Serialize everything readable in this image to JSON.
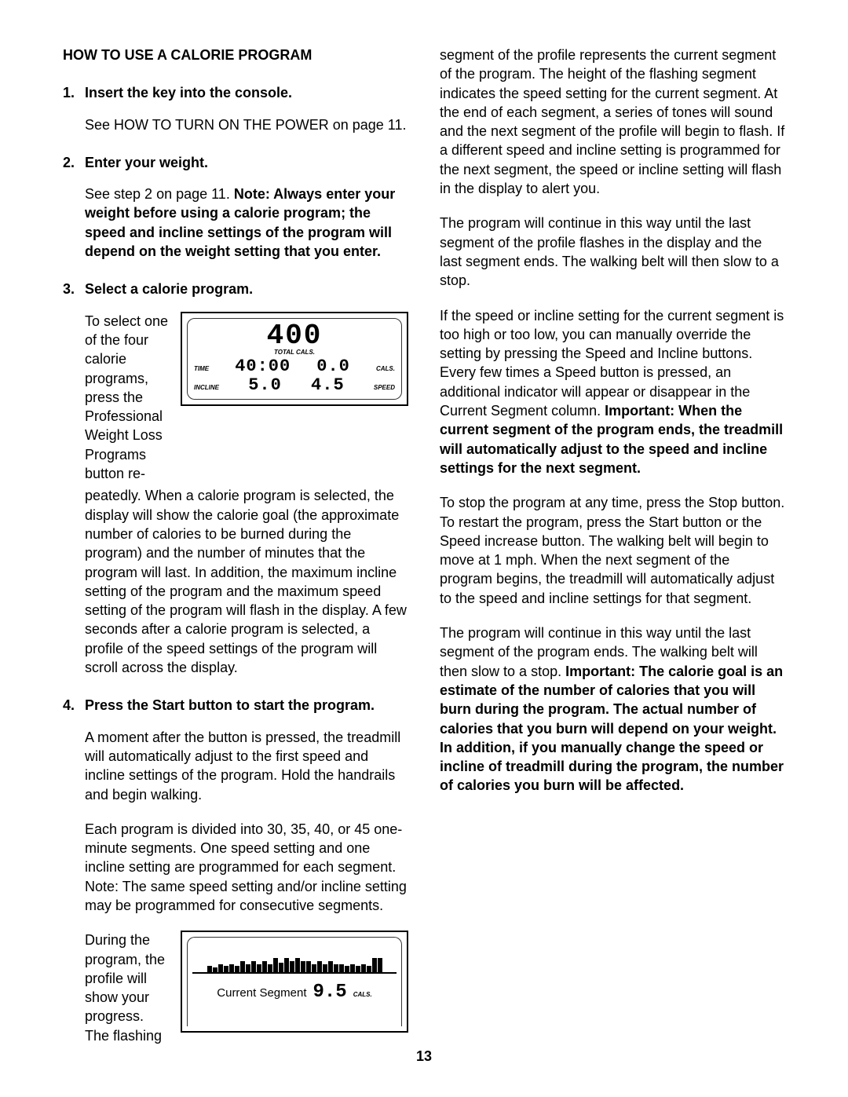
{
  "title": "HOW TO USE A CALORIE PROGRAM",
  "steps": {
    "s1": {
      "num": "1.",
      "head": "Insert the key into the console.",
      "body": "See HOW TO TURN ON THE POWER on page 11."
    },
    "s2": {
      "num": "2.",
      "head": "Enter your weight.",
      "body_pre": "See step 2 on page 11. ",
      "body_bold": "Note: Always enter your weight before using a calorie program; the speed and incline settings of the program will depend on the weight setting that you enter."
    },
    "s3": {
      "num": "3.",
      "head": "Select a calorie program.",
      "wrap_text": "To select one of the four calorie programs, press the Professional Weight Loss Programs button re-",
      "cont": "peatedly. When a calorie program is selected, the display will show the calorie goal (the approximate number of calories to be burned during the program) and the number of minutes that the program will last. In addition, the maximum incline setting of the program and the maximum speed setting of the program will flash in the display. A few seconds after a calorie program is selected, a profile of the speed settings of the program will scroll across the display."
    },
    "s4": {
      "num": "4.",
      "head": "Press the Start button to start the program.",
      "p1": "A moment after the button is pressed, the treadmill will automatically adjust to the first speed and incline settings of the program. Hold the handrails and begin walking.",
      "p2": "Each program is divided into 30, 35, 40, or 45 one-minute segments. One speed setting and one incline setting are programmed for each segment. Note: The same speed setting and/or incline setting may be programmed for consecutive segments.",
      "wrap_text": "During the program, the profile will show your progress. The flashing"
    }
  },
  "display1": {
    "total_cals": "400",
    "total_label": "TOTAL CALS.",
    "time_label": "TIME",
    "time_val": "40:00",
    "cals_val": "0.0",
    "cals_label": "CALS.",
    "incline_label": "INCLINE",
    "incline_val": "5.0",
    "speed_val": "4.5",
    "speed_label": "SPEED"
  },
  "display2": {
    "bars": [
      8,
      6,
      10,
      8,
      10,
      8,
      14,
      10,
      14,
      10,
      14,
      10,
      18,
      12,
      18,
      14,
      18,
      14,
      14,
      10,
      14,
      10,
      14,
      10,
      10,
      8,
      10,
      8,
      10,
      8,
      18,
      18
    ],
    "cs_label": "Current Segment",
    "cs_val": "9.5",
    "cs_unit": "CALS."
  },
  "col2": {
    "p1": "segment of the profile represents the current segment of the program. The height of the flashing segment indicates the speed setting for the current segment. At the end of each segment, a series of tones will sound and the next segment of the profile will begin to flash. If a different speed and incline setting is programmed for the next segment, the speed or incline setting will flash in the display to alert you.",
    "p2": "The program will continue in this way until the last segment of the profile flashes in the display and the last segment ends. The walking belt will then slow to a stop.",
    "p3_pre": "If the speed or incline setting for the current segment is too high or too low, you can manually override the setting by pressing the Speed and Incline buttons. Every few times a Speed button is pressed, an additional indicator will appear or disappear in the Current Segment column. ",
    "p3_bold": "Important: When the current segment of the program ends, the treadmill will automatically adjust to the speed and incline settings for the next segment.",
    "p4": "To stop the program at any time, press the Stop button. To restart the program, press the Start button or the Speed increase button. The walking belt will begin to move at 1 mph. When the next segment of the program begins, the treadmill will automatically adjust to the speed and incline settings for that segment.",
    "p5_pre": "The program will continue in this way until the last segment of the program ends. The walking belt will then slow to a stop. ",
    "p5_bold": "Important: The calorie goal is an estimate of the number of calories that you will burn during the program. The actual number of calories that you burn will depend on your weight. In addition, if you manually change the speed or incline of treadmill during the program, the number of calories you burn will be affected."
  },
  "page": "13"
}
